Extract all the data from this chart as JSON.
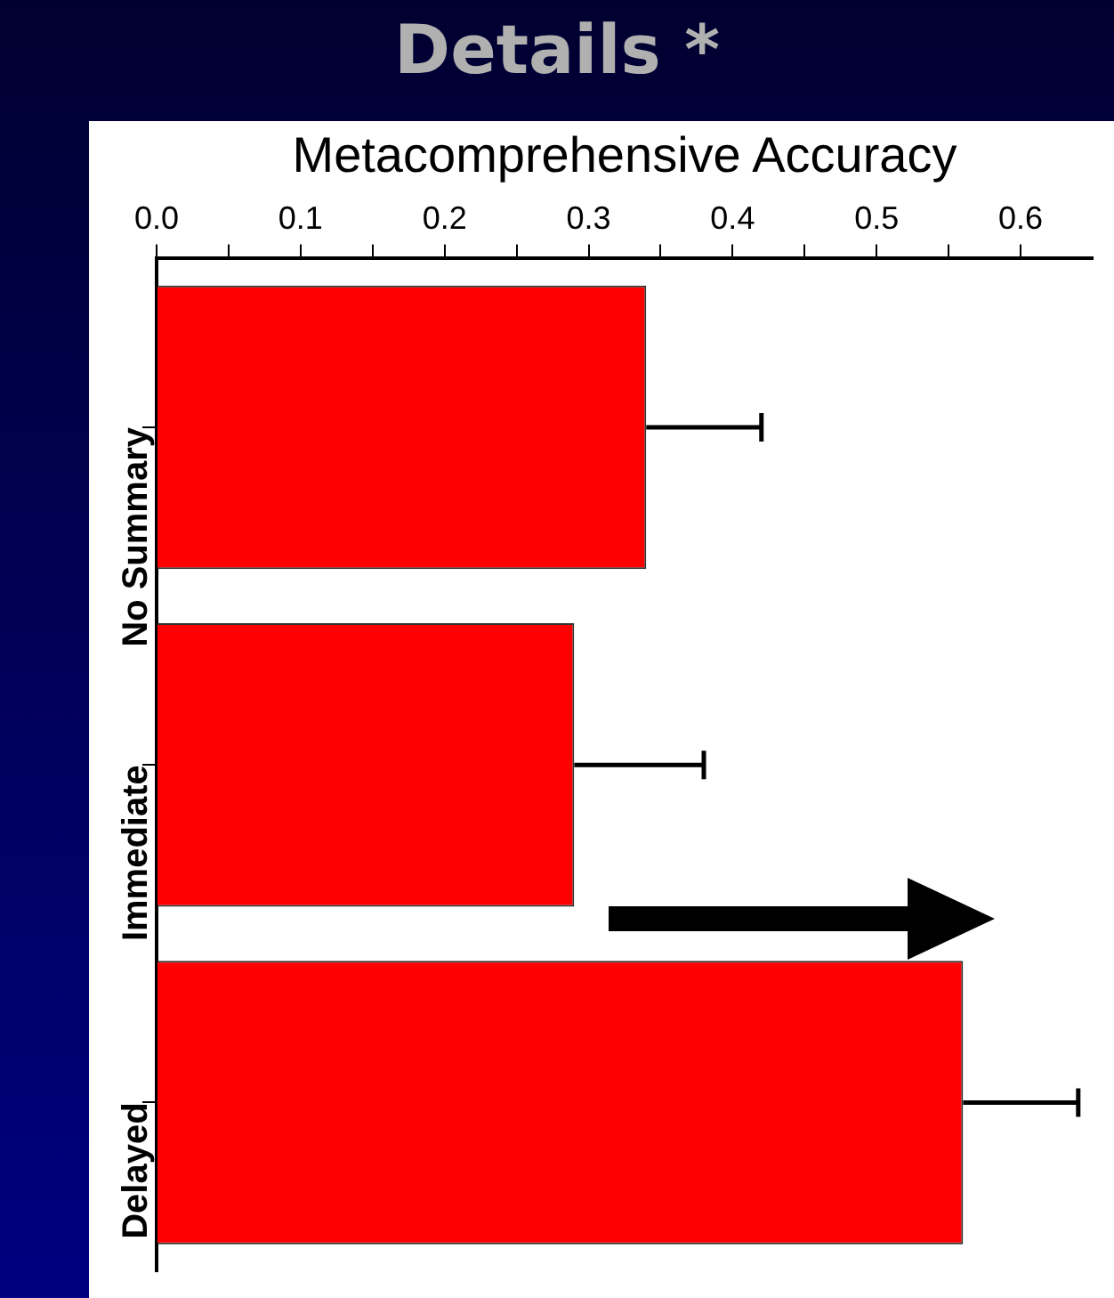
{
  "chart_data": {
    "type": "bar",
    "title": "Details *",
    "xlabel": "Metacomprehensive Accuracy",
    "orientation": "horizontal",
    "categories": [
      "No Summary",
      "Immediate",
      "Delayed"
    ],
    "values": [
      0.34,
      0.29,
      0.56
    ],
    "errors": [
      [
        0.34,
        0.42
      ],
      [
        0.29,
        0.38
      ],
      [
        0.56,
        0.64
      ]
    ],
    "color": "#ff0000",
    "xlim": [
      0,
      0.65
    ],
    "xticks": [
      {
        "value": 0,
        "label": "0.0"
      },
      {
        "value": 0.05,
        "label": null
      },
      {
        "value": 0.1,
        "label": "0.1"
      },
      {
        "value": 0.15,
        "label": null
      },
      {
        "value": 0.2,
        "label": "0.2"
      },
      {
        "value": 0.25,
        "label": null
      },
      {
        "value": 0.3,
        "label": "0.3"
      },
      {
        "value": 0.35,
        "label": null
      },
      {
        "value": 0.4,
        "label": "0.4"
      },
      {
        "value": 0.45,
        "label": null
      },
      {
        "value": 0.5,
        "label": "0.5"
      },
      {
        "value": 0.55,
        "label": null
      },
      {
        "value": 0.6,
        "label": "0.6"
      }
    ],
    "grid": false,
    "legend": false
  }
}
